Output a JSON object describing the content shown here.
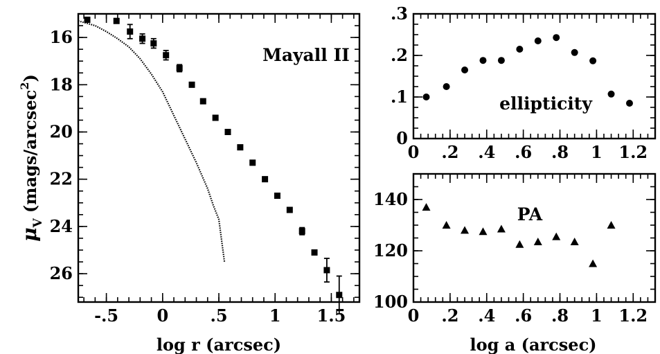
{
  "chart_data": [
    {
      "id": "surface-brightness",
      "type": "scatter",
      "annotation": "Mayall II",
      "xlabel": "log r (arcsec)",
      "ylabel_main": "μ",
      "ylabel_sub": "V",
      "ylabel_rest": "(mags/arcsec",
      "ylabel_sup": "2",
      "ylabel_close": ")",
      "xlim": [
        -0.75,
        1.75
      ],
      "ylim": [
        27.2,
        15.0
      ],
      "y_inverted": true,
      "xticks": [
        -0.5,
        0,
        0.5,
        1,
        1.5
      ],
      "xtick_labels": [
        "-.5",
        "0",
        ".5",
        "1",
        "1.5"
      ],
      "yticks": [
        16,
        18,
        20,
        22,
        24,
        26
      ],
      "ytick_labels": [
        "16",
        "18",
        "20",
        "22",
        "24",
        "26"
      ],
      "marker": "square",
      "series": [
        {
          "points": [
            {
              "x": -0.67,
              "y": 15.25,
              "err": 0.1
            },
            {
              "x": -0.41,
              "y": 15.3,
              "err": 0.1
            },
            {
              "x": -0.29,
              "y": 15.75,
              "err": 0.3
            },
            {
              "x": -0.18,
              "y": 16.05,
              "err": 0.2
            },
            {
              "x": -0.08,
              "y": 16.25,
              "err": 0.2
            },
            {
              "x": 0.03,
              "y": 16.75,
              "err": 0.2
            },
            {
              "x": 0.15,
              "y": 17.3,
              "err": 0.15
            },
            {
              "x": 0.26,
              "y": 18.0,
              "err": 0.1
            },
            {
              "x": 0.36,
              "y": 18.7,
              "err": 0.1
            },
            {
              "x": 0.47,
              "y": 19.4,
              "err": 0.1
            },
            {
              "x": 0.58,
              "y": 20.0,
              "err": 0.1
            },
            {
              "x": 0.69,
              "y": 20.65,
              "err": 0.1
            },
            {
              "x": 0.8,
              "y": 21.3,
              "err": 0.1
            },
            {
              "x": 0.91,
              "y": 22.0,
              "err": 0.1
            },
            {
              "x": 1.02,
              "y": 22.7,
              "err": 0.1
            },
            {
              "x": 1.13,
              "y": 23.3,
              "err": 0.1
            },
            {
              "x": 1.24,
              "y": 24.2,
              "err": 0.15
            },
            {
              "x": 1.35,
              "y": 25.1,
              "err": 0.1
            },
            {
              "x": 1.46,
              "y": 25.85,
              "err": 0.5
            },
            {
              "x": 1.57,
              "y": 26.9,
              "err": 0.8
            }
          ]
        }
      ],
      "profile_curve": {
        "points": [
          [
            -0.75,
            15.3
          ],
          [
            -0.6,
            15.5
          ],
          [
            -0.5,
            15.75
          ],
          [
            -0.4,
            16.05
          ],
          [
            -0.3,
            16.4
          ],
          [
            -0.2,
            16.9
          ],
          [
            -0.1,
            17.55
          ],
          [
            0.0,
            18.3
          ],
          [
            0.1,
            19.3
          ],
          [
            0.2,
            20.3
          ],
          [
            0.3,
            21.3
          ],
          [
            0.4,
            22.4
          ],
          [
            0.45,
            23.1
          ],
          [
            0.5,
            23.7
          ],
          [
            0.55,
            25.5
          ]
        ]
      }
    },
    {
      "id": "ellipticity",
      "type": "scatter",
      "annotation": "ellipticity",
      "xlim": [
        0,
        1.32
      ],
      "ylim": [
        0,
        0.3
      ],
      "xticks": [
        0,
        0.2,
        0.4,
        0.6,
        0.8,
        1.0,
        1.2
      ],
      "xtick_labels": [
        "0",
        ".2",
        ".4",
        ".6",
        ".8",
        "1",
        "1.2"
      ],
      "yticks": [
        0,
        0.1,
        0.2,
        0.3
      ],
      "ytick_labels": [
        "0",
        ".1",
        ".2",
        ".3"
      ],
      "marker": "circle",
      "series": [
        {
          "x": [
            0.07,
            0.18,
            0.28,
            0.38,
            0.48,
            0.58,
            0.68,
            0.78,
            0.88,
            0.98,
            1.08,
            1.18
          ],
          "y": [
            0.1,
            0.125,
            0.165,
            0.188,
            0.188,
            0.215,
            0.235,
            0.243,
            0.207,
            0.187,
            0.107,
            0.085
          ]
        }
      ]
    },
    {
      "id": "position-angle",
      "type": "scatter",
      "annotation": "PA",
      "xlabel": "log a (arcsec)",
      "xlim": [
        0,
        1.32
      ],
      "ylim": [
        100,
        150
      ],
      "xticks": [
        0,
        0.2,
        0.4,
        0.6,
        0.8,
        1.0,
        1.2
      ],
      "xtick_labels": [
        "0",
        ".2",
        ".4",
        ".6",
        ".8",
        "1",
        "1.2"
      ],
      "yticks": [
        100,
        120,
        140
      ],
      "ytick_labels": [
        "100",
        "120",
        "140"
      ],
      "marker": "triangle",
      "series": [
        {
          "x": [
            0.07,
            0.18,
            0.28,
            0.38,
            0.48,
            0.58,
            0.68,
            0.78,
            0.88,
            0.98,
            1.08
          ],
          "y": [
            137,
            130,
            128,
            127.5,
            128.5,
            122.5,
            123.5,
            125.5,
            123.5,
            115,
            130
          ]
        }
      ]
    }
  ]
}
